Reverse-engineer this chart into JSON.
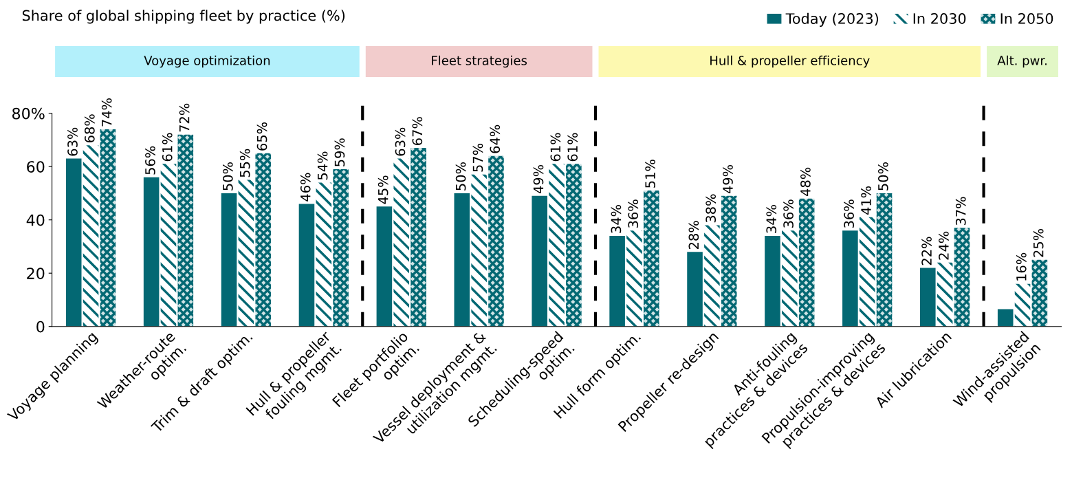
{
  "chart_data": {
    "type": "bar",
    "title": "Share of global shipping fleet by practice (%)",
    "categories": [
      "Voyage planning",
      "Weather-route\noptim.",
      "Trim & draft optim.",
      "Hull & propeller\nfouling mgmt.",
      "Fleet portfolio\noptim.",
      "Vessel deployment &\nutilization mgmt.",
      "Scheduling-speed\noptim.",
      "Hull form optim.",
      "Propeller re-design",
      "Anti-fouling\npractices & devices",
      "Propulsion-improving\npractices & devices",
      "Air lubrication",
      "Wind-assisted\npropulsion"
    ],
    "series": [
      {
        "name": "Today (2023)",
        "color": "#036873",
        "values": [
          63,
          56,
          50,
          46,
          45,
          50,
          49,
          34,
          28,
          34,
          36,
          22,
          6.5
        ],
        "value_labels": [
          "63%",
          "56%",
          "50%",
          "46%",
          "45%",
          "50%",
          "49%",
          "34%",
          "28%",
          "34%",
          "36%",
          "22%",
          null
        ]
      },
      {
        "name": "In 2030",
        "color": "#036873",
        "values": [
          68,
          61,
          55,
          54,
          63,
          57,
          61,
          36,
          38,
          36,
          41,
          24,
          16
        ],
        "value_labels": [
          "68%",
          "61%",
          "55%",
          "54%",
          "63%",
          "57%",
          "61%",
          "36%",
          "38%",
          "36%",
          "41%",
          "24%",
          "16%"
        ]
      },
      {
        "name": "In 2050",
        "color": "#036873",
        "values": [
          74,
          72,
          65,
          59,
          67,
          64,
          61,
          51,
          49,
          48,
          50,
          37,
          25
        ],
        "value_labels": [
          "74%",
          "72%",
          "65%",
          "59%",
          "67%",
          "64%",
          "61%",
          "51%",
          "49%",
          "48%",
          "50%",
          "37%",
          "25%"
        ]
      }
    ],
    "annotations": [
      "Voyage optimization",
      "Fleet strategies",
      "Hull & propeller efficiency",
      "Alt. pwr."
    ],
    "ylim": [
      0,
      80
    ],
    "yticks": [
      0,
      20,
      40,
      60,
      {
        "value": 80,
        "label": "80%"
      }
    ],
    "legend": "top right",
    "grid": false
  }
}
